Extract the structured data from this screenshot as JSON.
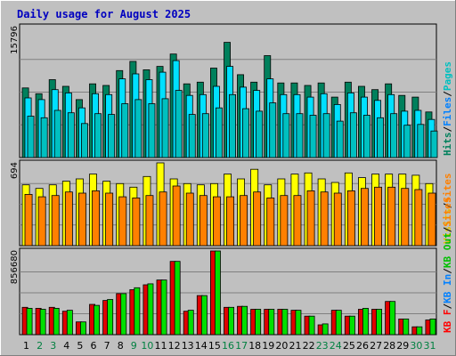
{
  "chart_data": {
    "type": "bar",
    "title": "Daily usage for August 2025",
    "colors": {
      "background": "#c0c0c0",
      "title": "#0000c0",
      "hits": "#00805c",
      "files": "#00e0ff",
      "pages": "#00c0c0",
      "visits": "#ffff00",
      "sites": "#ff8000",
      "kbin": "#0080ff",
      "kbout": "#00c000",
      "kbf": "#ff0000",
      "kbf_bar": "#e00000",
      "kb_bar": "#00e000",
      "weekday_label": "#000000",
      "weekend_label": "#008040"
    },
    "x": {
      "categories": [
        "1",
        "2",
        "3",
        "4",
        "5",
        "6",
        "7",
        "8",
        "9",
        "10",
        "11",
        "12",
        "13",
        "14",
        "15",
        "16",
        "17",
        "18",
        "19",
        "20",
        "21",
        "22",
        "23",
        "24",
        "25",
        "26",
        "27",
        "28",
        "29",
        "30",
        "31"
      ],
      "weekend": [
        false,
        true,
        true,
        false,
        false,
        false,
        false,
        false,
        true,
        true,
        false,
        false,
        false,
        false,
        false,
        true,
        true,
        false,
        false,
        false,
        false,
        false,
        true,
        true,
        false,
        false,
        false,
        false,
        false,
        true,
        true
      ]
    },
    "panels": [
      {
        "id": "hits-files-pages",
        "ymax_label": "15796",
        "ylim": [
          0,
          15796
        ],
        "legend": [
          {
            "text": "Hits",
            "color": "#00805c"
          },
          {
            "text": "/",
            "color": "#000000"
          },
          {
            "text": "Files",
            "color": "#0080ff"
          },
          {
            "text": "/",
            "color": "#000000"
          },
          {
            "text": "Pages",
            "color": "#00c0c0"
          }
        ],
        "series": [
          {
            "name": "Hits",
            "color": "#00805c",
            "values": [
              8400,
              7700,
              9400,
              8600,
              7000,
              8900,
              8700,
              10500,
              11600,
              10600,
              11000,
              12500,
              8900,
              9100,
              10800,
              13900,
              10000,
              9100,
              12300,
              9000,
              9000,
              8700,
              9000,
              7300,
              9100,
              8600,
              8200,
              8900,
              7500,
              7300,
              5500
            ]
          },
          {
            "name": "Files",
            "color": "#00e0ff",
            "values": [
              7200,
              7000,
              8200,
              7800,
              6000,
              7700,
              7600,
              9500,
              10100,
              9400,
              10300,
              11700,
              7500,
              7600,
              8600,
              11000,
              8500,
              8100,
              9500,
              7600,
              7600,
              7300,
              7700,
              6400,
              7800,
              7300,
              6900,
              7600,
              5600,
              5700,
              4600
            ]
          },
          {
            "name": "Pages",
            "color": "#00c0c0",
            "values": [
              5000,
              4800,
              5700,
              5400,
              4100,
              5300,
              5200,
              6500,
              7000,
              6500,
              7100,
              8100,
              5200,
              5300,
              6000,
              7600,
              5900,
              5600,
              6600,
              5300,
              5300,
              5100,
              5300,
              4400,
              5400,
              5100,
              4800,
              5300,
              3900,
              4000,
              3200
            ]
          }
        ]
      },
      {
        "id": "visits-sites",
        "ymax_label": "694",
        "ylim": [
          0,
          694
        ],
        "legend": [
          {
            "text": "Visits",
            "color": "#e0c000"
          },
          {
            "text": "/",
            "color": "#000000"
          },
          {
            "text": "Sites",
            "color": "#ff8000"
          }
        ],
        "series": [
          {
            "name": "Visits",
            "color": "#ffff00",
            "values": [
              510,
              480,
              510,
              540,
              560,
              600,
              540,
              520,
              490,
              580,
              694,
              560,
              520,
              510,
              520,
              600,
              560,
              640,
              510,
              560,
              600,
              610,
              560,
              530,
              610,
              570,
              600,
              600,
              600,
              590,
              520
            ]
          },
          {
            "name": "Sites",
            "color": "#ff8000",
            "values": [
              430,
              410,
              420,
              450,
              440,
              460,
              440,
              410,
              400,
              420,
              450,
              500,
              440,
              420,
              410,
              410,
              420,
              450,
              400,
              420,
              420,
              460,
              450,
              440,
              460,
              480,
              490,
              490,
              480,
              470,
              440
            ]
          }
        ]
      },
      {
        "id": "kbf-kbin-kbout",
        "ymax_label": "856680",
        "ylim": [
          0,
          856680
        ],
        "legend": [
          {
            "text": "KB F",
            "color": "#ff0000"
          },
          {
            "text": "/",
            "color": "#000000"
          },
          {
            "text": "KB In",
            "color": "#0080ff"
          },
          {
            "text": "/",
            "color": "#000000"
          },
          {
            "text": "KB Out",
            "color": "#00c000"
          },
          {
            "text": "/",
            "color": "#000000"
          },
          {
            "text": "Sites",
            "color": "#ff8000"
          }
        ],
        "series": [
          {
            "name": "KB F",
            "color": "#e00000",
            "values": [
              280000,
              270000,
              280000,
              240000,
              130000,
              310000,
              350000,
              420000,
              460000,
              510000,
              560000,
              750000,
              240000,
              400000,
              856680,
              280000,
              290000,
              260000,
              260000,
              260000,
              250000,
              190000,
              100000,
              250000,
              190000,
              260000,
              260000,
              340000,
              160000,
              80000,
              150000
            ]
          },
          {
            "name": "KB Out",
            "color": "#00e000",
            "values": [
              270000,
              260000,
              270000,
              250000,
              130000,
              300000,
              360000,
              420000,
              480000,
              520000,
              560000,
              750000,
              250000,
              400000,
              856680,
              280000,
              290000,
              260000,
              260000,
              260000,
              250000,
              190000,
              110000,
              250000,
              190000,
              270000,
              260000,
              340000,
              160000,
              80000,
              160000
            ]
          }
        ]
      }
    ]
  }
}
